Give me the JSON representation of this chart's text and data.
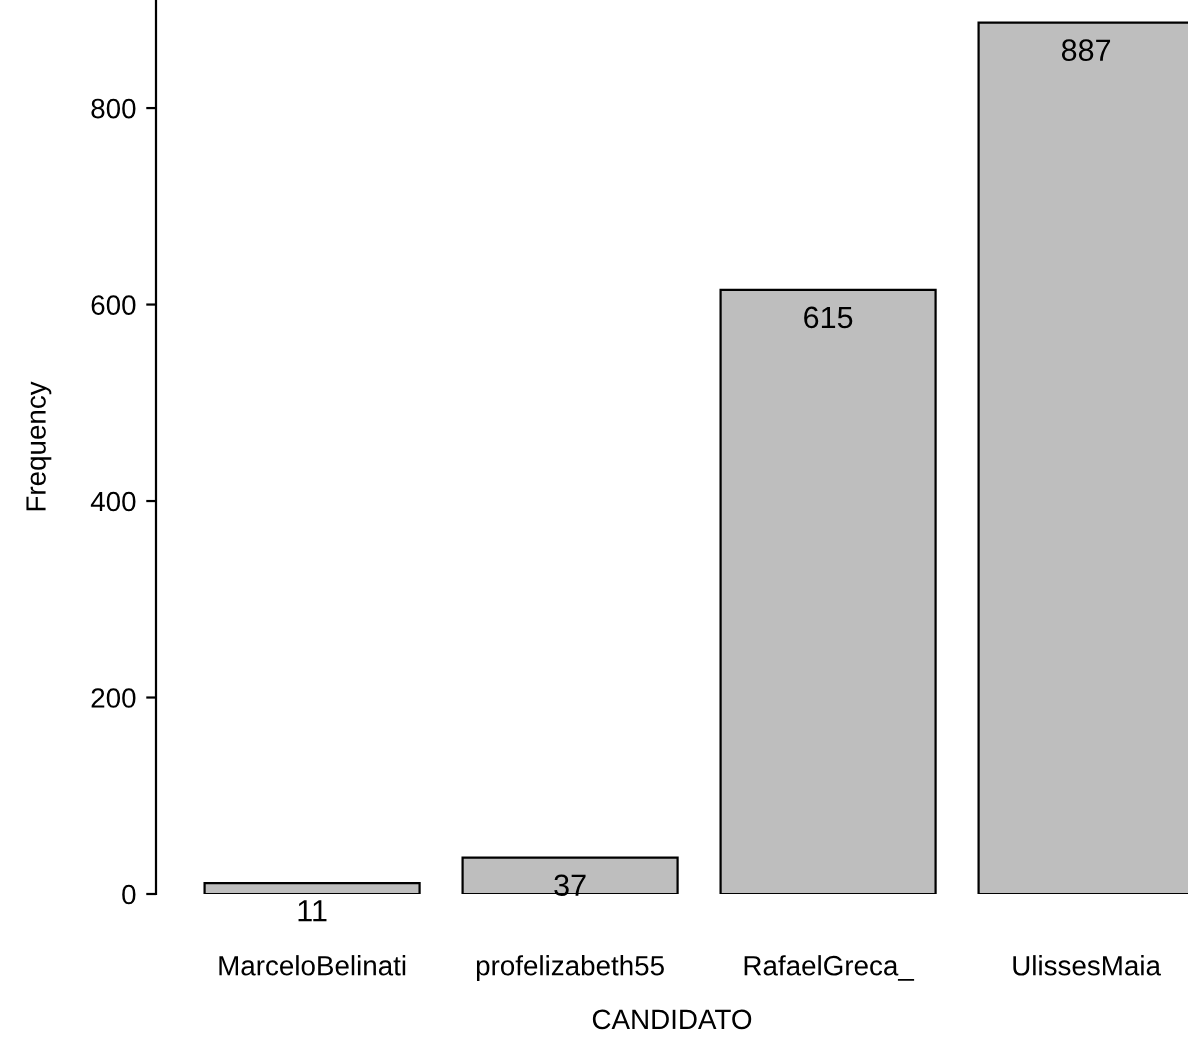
{
  "chart_data": {
    "type": "bar",
    "xlabel": "CANDIDATO",
    "ylabel": "Frequency",
    "categories": [
      "MarceloBelinati",
      "profelizabeth55",
      "RafaelGreca_",
      "UlissesMaia"
    ],
    "values": [
      11,
      37,
      615,
      887
    ],
    "color": "#bebebe",
    "ylim": [
      0,
      910
    ],
    "yticks": [
      0,
      200,
      400,
      600,
      800
    ],
    "grid": false,
    "data_labels": true
  }
}
